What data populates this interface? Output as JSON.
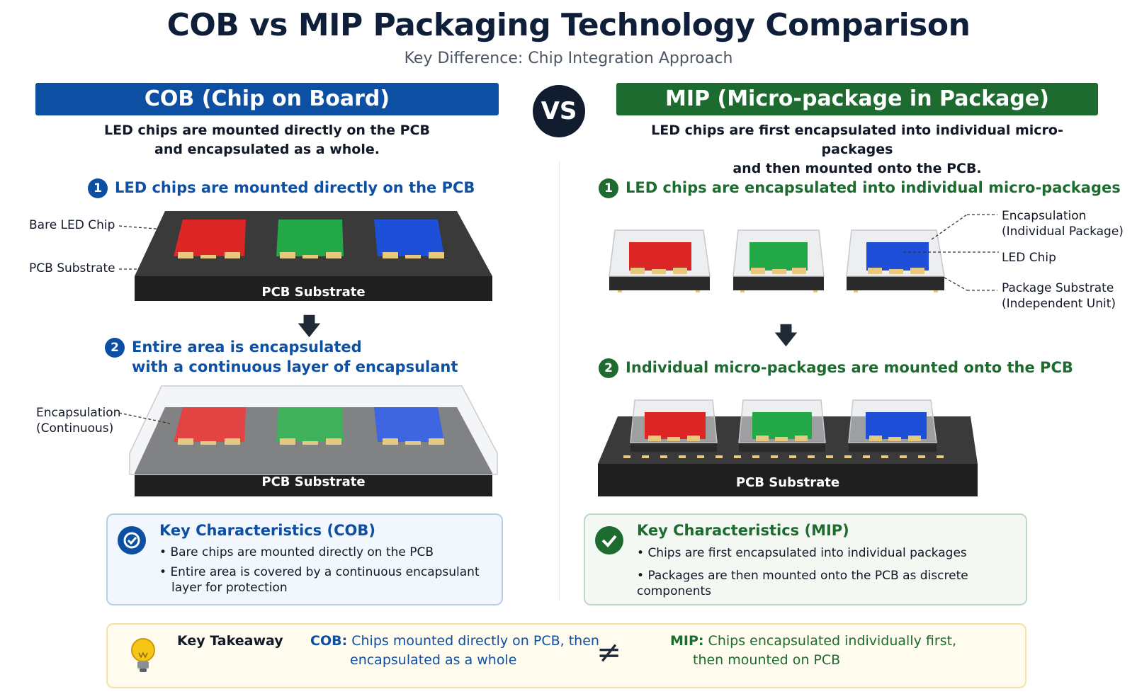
{
  "title": "COB vs MIP Packaging Technology Comparison",
  "subtitle": "Key Difference: Chip Integration Approach",
  "vs_label": "VS",
  "colors": {
    "cob_blue": "#0d4fa3",
    "mip_green": "#1d6b2f",
    "red_chip": "#dc2626",
    "green_chip": "#22a846",
    "blue_chip": "#1d4fd8",
    "pcb": "#2b2b2b"
  },
  "cob": {
    "banner": "COB  (Chip on Board)",
    "desc_line1": "LED chips are mounted directly on the PCB",
    "desc_line2": "and encapsulated as a whole.",
    "step1_num": "1",
    "step1": "LED chips are mounted directly on the PCB",
    "label_bare_chip": "Bare LED Chip",
    "label_pcb_substrate": "PCB Substrate",
    "pcb_label_1": "PCB Substrate",
    "step2_num": "2",
    "step2_line1": "Entire area is encapsulated",
    "step2_line2": "with a continuous layer of encapsulant",
    "label_encap_line1": "Encapsulation",
    "label_encap_line2": "(Continuous)",
    "pcb_label_2": "PCB Substrate",
    "key_title": "Key Characteristics  (COB)",
    "key_item1": "Bare chips are mounted directly on the PCB",
    "key_item2_line1": "Entire area is covered by a continuous encapsulant",
    "key_item2_line2": "layer for protection"
  },
  "mip": {
    "banner": "MIP  (Micro-package in Package)",
    "desc_line1": "LED chips are first encapsulated into individual micro-packages",
    "desc_line2": "and then mounted onto the PCB.",
    "step1_num": "1",
    "step1": "LED chips are encapsulated into individual micro-packages",
    "label_encap_line1": "Encapsulation",
    "label_encap_line2": "(Individual Package)",
    "label_led_chip": "LED Chip",
    "label_pkg_line1": "Package Substrate",
    "label_pkg_line2": "(Independent Unit)",
    "step2_num": "2",
    "step2": "Individual micro-packages are mounted onto the PCB",
    "pcb_label": "PCB Substrate",
    "key_title": "Key Characteristics  (MIP)",
    "key_item1": "Chips are first encapsulated into individual packages",
    "key_item2": "Packages are then mounted onto the PCB as discrete components"
  },
  "takeaway": {
    "title": "Key Takeaway",
    "cob_prefix": "COB:",
    "cob_line1": "Chips mounted directly on PCB, then",
    "cob_line2": "encapsulated as a whole",
    "neq": "≠",
    "mip_prefix": "MIP:",
    "mip_line1": "Chips encapsulated individually first,",
    "mip_line2": "then mounted on PCB"
  },
  "icons": {
    "step_arrow": "down-arrow-icon",
    "cob_key": "circle-check-icon",
    "mip_key": "check-icon",
    "takeaway": "lightbulb-icon"
  }
}
